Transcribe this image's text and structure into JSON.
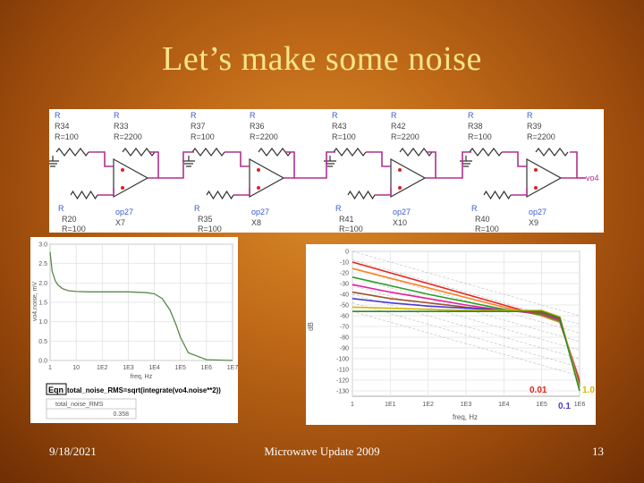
{
  "slide": {
    "title": "Let’s make some noise",
    "footer_date": "9/18/2021",
    "footer_center": "Microwave Update 2009",
    "page_number": "13"
  },
  "schematic": {
    "top_resistors": [
      {
        "label": "R",
        "name": "R34",
        "value": "R=100"
      },
      {
        "label": "R",
        "name": "R33",
        "value": "R=2200"
      },
      {
        "label": "R",
        "name": "R37",
        "value": "R=100"
      },
      {
        "label": "R",
        "name": "R36",
        "value": "R=2200"
      },
      {
        "label": "R",
        "name": "R43",
        "value": "R=100"
      },
      {
        "label": "R",
        "name": "R42",
        "value": "R=2200"
      },
      {
        "label": "R",
        "name": "R38",
        "value": "R=100"
      },
      {
        "label": "R",
        "name": "R39",
        "value": "R=2200"
      }
    ],
    "bottom_resistors": [
      {
        "label": "R",
        "name": "R20",
        "value": "R=100"
      },
      {
        "label": "R",
        "name": "R35",
        "value": "R=100"
      },
      {
        "label": "R",
        "name": "R41",
        "value": "R=100"
      },
      {
        "label": "R",
        "name": "R40",
        "value": "R=100"
      }
    ],
    "opamps": [
      {
        "model": "op27",
        "name": "X7"
      },
      {
        "model": "op27",
        "name": "X8"
      },
      {
        "model": "op27",
        "name": "X10"
      },
      {
        "model": "op27",
        "name": "X9"
      }
    ],
    "output_label": "vo4"
  },
  "left_plot": {
    "ylabel": "vo4.noise, mV",
    "xlabel": "freq, Hz",
    "yticks": [
      "3.0",
      "2.5",
      "2.0",
      "1.5",
      "1.0",
      "0.5",
      "0.0"
    ],
    "xticks": [
      "1",
      "10",
      "1E2",
      "1E3",
      "1E4",
      "1E5",
      "1E6",
      "1E7"
    ],
    "equation_prefix": "Eqn",
    "equation": "total_noise_RMS=sqrt(integrate(vo4.noise**2))",
    "table_header": "total_noise_RMS",
    "table_value": "0.358"
  },
  "right_plot": {
    "ylabel": "dB",
    "xlabel": "freq, Hz",
    "yticks": [
      "0",
      "-10",
      "-20",
      "-30",
      "-40",
      "-50",
      "-60",
      "-70",
      "-80",
      "-90",
      "-100",
      "-110",
      "-120",
      "-130"
    ],
    "xticks": [
      "1",
      "1E1",
      "1E2",
      "1E3",
      "1E4",
      "1E5",
      "1E6"
    ],
    "annotations": [
      {
        "text": "0.01",
        "color": "#e8221b"
      },
      {
        "text": "0.1",
        "color": "#4a3bd6"
      },
      {
        "text": "1.0",
        "color": "#d9b400"
      }
    ]
  },
  "chart_data": [
    {
      "type": "line",
      "title": "",
      "xlabel": "freq, Hz",
      "ylabel": "vo4.noise, mV",
      "xscale": "log",
      "xlim": [
        1,
        10000000
      ],
      "ylim": [
        0,
        3.0
      ],
      "series": [
        {
          "x": [
            1,
            1.2,
            1.6,
            2,
            3,
            5,
            10,
            30,
            100,
            1000,
            5000,
            10000,
            20000,
            40000,
            70000,
            100000,
            200000,
            1000000,
            10000000
          ],
          "values": [
            2.8,
            2.3,
            2.05,
            1.95,
            1.85,
            1.8,
            1.78,
            1.77,
            1.77,
            1.77,
            1.75,
            1.72,
            1.6,
            1.3,
            0.9,
            0.6,
            0.2,
            0.02,
            0.0
          ],
          "color": "#5a8a4a"
        }
      ],
      "grid": true
    },
    {
      "type": "line",
      "title": "",
      "xlabel": "freq, Hz",
      "ylabel": "dB",
      "xscale": "log",
      "xlim": [
        1,
        1000000
      ],
      "ylim": [
        -135,
        0
      ],
      "series": [
        {
          "x": [
            1,
            10,
            100,
            1000,
            10000,
            100000,
            1000000
          ],
          "values": [
            -10,
            -20,
            -30,
            -40,
            -50,
            -60,
            -120
          ],
          "color": "#e8221b"
        },
        {
          "x": [
            1,
            10,
            100,
            1000,
            10000,
            100000,
            1000000
          ],
          "values": [
            -16,
            -25,
            -34,
            -43,
            -52,
            -60,
            -120
          ],
          "color": "#ff7f1f"
        },
        {
          "x": [
            1,
            10,
            100,
            1000,
            10000,
            100000,
            1000000
          ],
          "values": [
            -24,
            -32,
            -40,
            -47,
            -54,
            -59,
            -122
          ],
          "color": "#2a9d2a"
        },
        {
          "x": [
            1,
            10,
            100,
            1000,
            10000,
            100000,
            1000000
          ],
          "values": [
            -31,
            -38,
            -44,
            -50,
            -55,
            -58,
            -122
          ],
          "color": "#e61ea0"
        },
        {
          "x": [
            1,
            10,
            100,
            1000,
            10000,
            100000,
            1000000
          ],
          "values": [
            -38,
            -44,
            -48,
            -52,
            -55,
            -57,
            -124
          ],
          "color": "#a0522d"
        },
        {
          "x": [
            1,
            10,
            100,
            1000,
            10000,
            100000,
            1000000
          ],
          "values": [
            -44,
            -48,
            -51,
            -53,
            -55,
            -56,
            -126
          ],
          "color": "#4a3bd6"
        },
        {
          "x": [
            1,
            10,
            100,
            1000,
            10000,
            100000,
            1000000
          ],
          "values": [
            -52,
            -53,
            -54,
            -55,
            -55,
            -55,
            -127
          ],
          "color": "#d9b400"
        },
        {
          "x": [
            1,
            10,
            100,
            1000,
            10000,
            100000,
            1000000
          ],
          "values": [
            -56,
            -56,
            -56,
            -56,
            -56,
            -56,
            -130
          ],
          "color": "#2b8a2b"
        }
      ],
      "grid": true
    }
  ]
}
